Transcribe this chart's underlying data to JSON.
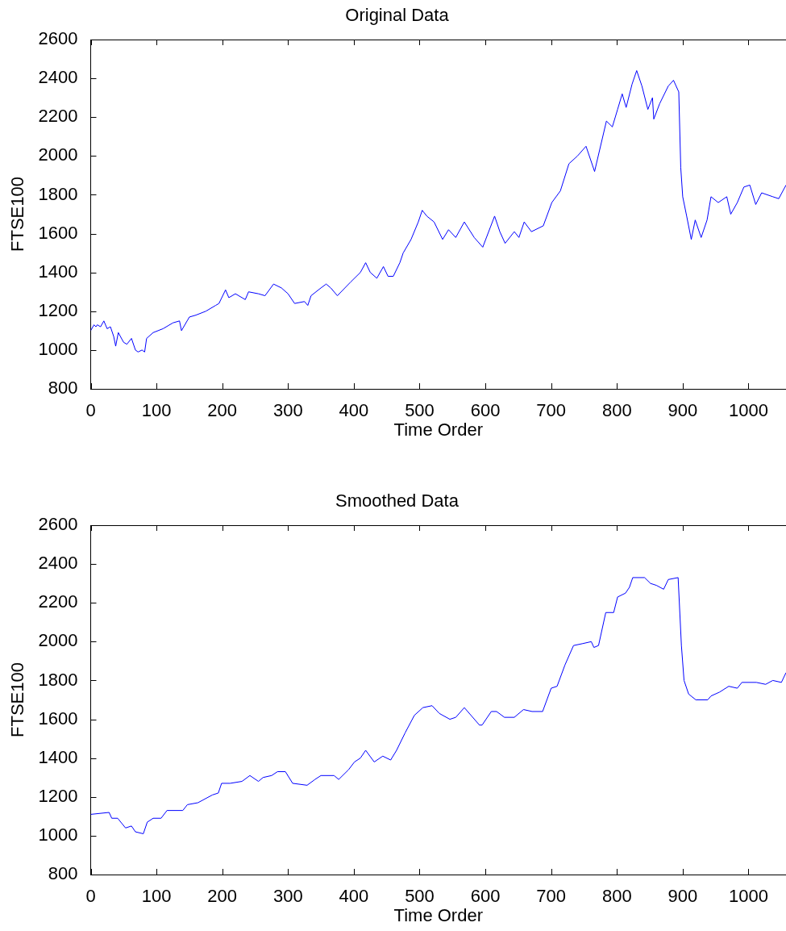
{
  "chart_data": [
    {
      "type": "line",
      "title": "Original Data",
      "xlabel": "Time Order",
      "ylabel": "FTSE100",
      "color": "#0000ff",
      "marker": "none",
      "xlim": [
        0,
        1057
      ],
      "xticks": [
        0,
        100,
        200,
        300,
        400,
        500,
        600,
        700,
        800,
        900,
        1000
      ],
      "ylim": [
        800,
        2600
      ],
      "yticks": [
        800,
        1000,
        1200,
        1400,
        1600,
        1800,
        2000,
        2200,
        2400,
        2600
      ],
      "x": [
        0,
        5,
        8,
        10,
        15,
        20,
        25,
        30,
        35,
        38,
        42,
        50,
        55,
        62,
        68,
        72,
        78,
        82,
        85,
        95,
        110,
        125,
        135,
        138,
        150,
        160,
        175,
        190,
        195,
        205,
        210,
        220,
        235,
        240,
        255,
        265,
        278,
        290,
        300,
        310,
        325,
        330,
        335,
        350,
        358,
        365,
        375,
        395,
        410,
        418,
        425,
        435,
        445,
        452,
        460,
        470,
        475,
        487,
        498,
        504,
        511,
        522,
        535,
        544,
        555,
        568,
        583,
        596,
        614,
        622,
        630,
        644,
        651,
        659,
        670,
        688,
        701,
        714,
        727,
        740,
        753,
        766,
        784,
        793,
        801,
        808,
        814,
        823,
        830,
        838,
        847,
        854,
        856,
        865,
        878,
        886,
        894,
        897,
        900,
        906,
        913,
        919,
        928,
        937,
        943,
        954,
        967,
        973,
        983,
        993,
        1002,
        1011,
        1020,
        1037,
        1046,
        1057
      ],
      "values": [
        1100,
        1130,
        1120,
        1130,
        1120,
        1150,
        1110,
        1120,
        1070,
        1020,
        1090,
        1040,
        1030,
        1060,
        1000,
        990,
        1000,
        990,
        1060,
        1090,
        1110,
        1140,
        1150,
        1100,
        1170,
        1180,
        1200,
        1230,
        1240,
        1310,
        1270,
        1290,
        1260,
        1300,
        1290,
        1280,
        1340,
        1320,
        1290,
        1240,
        1250,
        1230,
        1280,
        1320,
        1340,
        1320,
        1280,
        1350,
        1400,
        1450,
        1400,
        1370,
        1430,
        1380,
        1380,
        1450,
        1500,
        1570,
        1660,
        1720,
        1690,
        1660,
        1570,
        1620,
        1580,
        1660,
        1580,
        1530,
        1690,
        1610,
        1550,
        1610,
        1580,
        1660,
        1610,
        1640,
        1760,
        1820,
        1960,
        2000,
        2050,
        1920,
        2180,
        2150,
        2240,
        2320,
        2250,
        2370,
        2440,
        2360,
        2240,
        2300,
        2190,
        2270,
        2360,
        2390,
        2330,
        1940,
        1790,
        1690,
        1570,
        1670,
        1580,
        1670,
        1790,
        1760,
        1790,
        1700,
        1760,
        1840,
        1850,
        1750,
        1810,
        1790,
        1780,
        1850
      ]
    },
    {
      "type": "line",
      "title": "Smoothed Data",
      "xlabel": "Time Order",
      "ylabel": "FTSE100",
      "color": "#0000ff",
      "marker": "none",
      "xlim": [
        0,
        1057
      ],
      "xticks": [
        0,
        100,
        200,
        300,
        400,
        500,
        600,
        700,
        800,
        900,
        1000
      ],
      "ylim": [
        800,
        2600
      ],
      "yticks": [
        800,
        1000,
        1200,
        1400,
        1600,
        1800,
        2000,
        2200,
        2400,
        2600
      ],
      "x": [
        0,
        28,
        32,
        41,
        53,
        62,
        68,
        80,
        86,
        95,
        107,
        116,
        140,
        147,
        163,
        185,
        194,
        199,
        212,
        230,
        242,
        255,
        262,
        275,
        284,
        296,
        307,
        329,
        341,
        350,
        370,
        377,
        392,
        401,
        410,
        418,
        431,
        444,
        456,
        465,
        478,
        492,
        505,
        519,
        530,
        546,
        555,
        568,
        591,
        595,
        609,
        617,
        629,
        644,
        658,
        671,
        687,
        700,
        709,
        721,
        734,
        748,
        761,
        765,
        772,
        783,
        795,
        801,
        813,
        819,
        824,
        842,
        851,
        860,
        871,
        878,
        893,
        898,
        902,
        909,
        920,
        938,
        943,
        956,
        970,
        983,
        990,
        1012,
        1026,
        1037,
        1050,
        1057
      ],
      "values": [
        1110,
        1120,
        1090,
        1090,
        1040,
        1050,
        1020,
        1010,
        1070,
        1090,
        1090,
        1130,
        1130,
        1160,
        1170,
        1210,
        1220,
        1270,
        1270,
        1280,
        1310,
        1280,
        1300,
        1310,
        1330,
        1330,
        1270,
        1260,
        1290,
        1310,
        1310,
        1290,
        1340,
        1380,
        1400,
        1440,
        1380,
        1410,
        1390,
        1440,
        1530,
        1620,
        1660,
        1670,
        1630,
        1600,
        1610,
        1660,
        1570,
        1570,
        1640,
        1640,
        1610,
        1610,
        1650,
        1640,
        1640,
        1760,
        1770,
        1880,
        1980,
        1990,
        2000,
        1970,
        1980,
        2150,
        2150,
        2230,
        2250,
        2280,
        2330,
        2330,
        2300,
        2290,
        2270,
        2320,
        2330,
        1980,
        1800,
        1730,
        1700,
        1700,
        1720,
        1740,
        1770,
        1760,
        1790,
        1790,
        1780,
        1800,
        1790,
        1840
      ]
    }
  ]
}
